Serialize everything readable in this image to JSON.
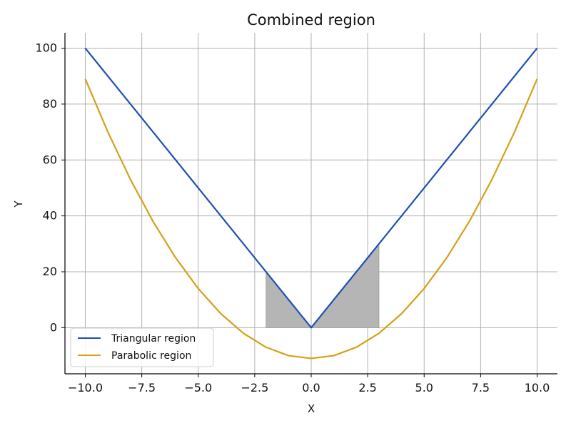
{
  "chart_data": {
    "type": "line",
    "title": "Combined region",
    "xlabel": "X",
    "ylabel": "Y",
    "xlim": [
      -10.9,
      10.9
    ],
    "ylim": [
      -16.5,
      105.5
    ],
    "grid": true,
    "legend_position": "lower-left",
    "x_ticks": [
      -10.0,
      -7.5,
      -5.0,
      -2.5,
      0.0,
      2.5,
      5.0,
      7.5,
      10.0
    ],
    "x_tick_labels": [
      "−10.0",
      "−7.5",
      "−5.0",
      "−2.5",
      "0.0",
      "2.5",
      "5.0",
      "7.5",
      "10.0"
    ],
    "y_ticks": [
      0,
      20,
      40,
      60,
      80,
      100
    ],
    "y_tick_labels": [
      "0",
      "20",
      "40",
      "60",
      "80",
      "100"
    ],
    "series": [
      {
        "name": "Triangular region",
        "color": "#1f4fb5",
        "x": [
          -10,
          0,
          10
        ],
        "y": [
          100,
          0,
          100
        ]
      },
      {
        "name": "Parabolic region",
        "color": "#d4a017",
        "x": [
          -10,
          -9,
          -8,
          -7,
          -6,
          -5,
          -4,
          -3,
          -2,
          -1,
          0,
          1,
          2,
          3,
          4,
          5,
          6,
          7,
          8,
          9,
          10
        ],
        "y": [
          89,
          70,
          53,
          38,
          25,
          14,
          5,
          -2,
          -7,
          -10,
          -11,
          -10,
          -7,
          -2,
          5,
          14,
          25,
          38,
          53,
          70,
          89
        ]
      }
    ],
    "shaded_region": {
      "color": "#b5b5b5",
      "x_start": -2,
      "x_end": 3,
      "baseline": 0,
      "description_source": "Triangular region"
    }
  }
}
